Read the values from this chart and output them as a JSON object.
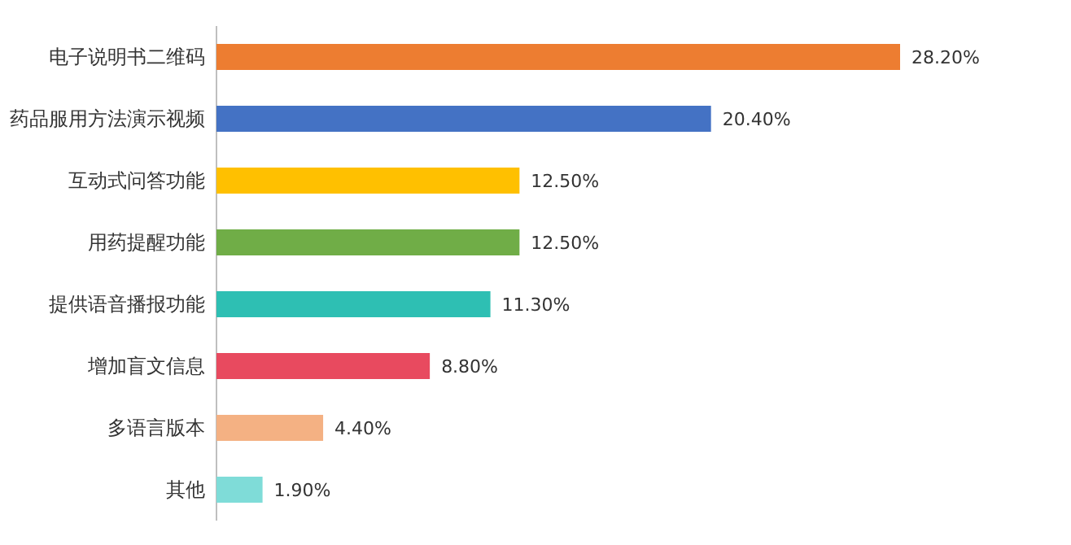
{
  "chart_data": {
    "type": "bar",
    "orientation": "horizontal",
    "categories": [
      "电子说明书二维码",
      "药品服用方法演示视频",
      "互动式问答功能",
      "用药提醒功能",
      "提供语音播报功能",
      "增加盲文信息",
      "多语言版本",
      "其他"
    ],
    "values": [
      28.2,
      20.4,
      12.5,
      12.5,
      11.3,
      8.8,
      4.4,
      1.9
    ],
    "colors": [
      "#ed7d31",
      "#4472c4",
      "#ffc000",
      "#70ad47",
      "#2ebfb3",
      "#e84a5f",
      "#f4b183",
      "#7fdcd8"
    ],
    "value_labels": [
      "28.20%",
      "20.40%",
      "12.50%",
      "12.50%",
      "11.30%",
      "8.80%",
      "4.40%",
      "1.90%"
    ]
  }
}
